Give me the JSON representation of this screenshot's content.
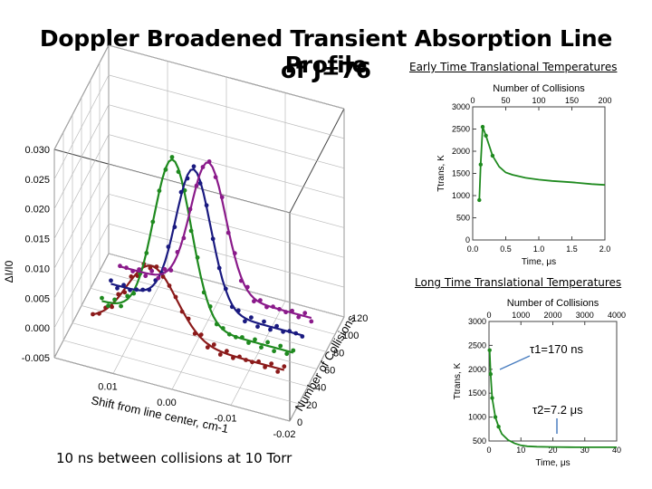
{
  "title_line1": "Doppler Broadened Transient Absorption Line Profile",
  "title_line2": "of J=76",
  "subtitle_early": "Early Time Translational Temperatures",
  "subtitle_long": "Long Time Translational Temperatures",
  "footnote": "10 ns between collisions at 10 Torr",
  "chart_data": [
    {
      "type": "line",
      "subtype": "3d-waterfall",
      "xlabel": "Shift from line center, cm-1",
      "ylabel": "ΔI/I0",
      "zlabel": "Number of Collisions",
      "x_ticks": [
        "0.01",
        "0.00",
        "-0.01",
        "-0.02"
      ],
      "y_ticks": [
        "-0.005",
        "0.000",
        "0.005",
        "0.010",
        "0.015",
        "0.020",
        "0.025",
        "0.030"
      ],
      "z_ticks": [
        "0",
        "20",
        "40",
        "60",
        "80",
        "100",
        "120"
      ],
      "ylim": [
        -0.005,
        0.03
      ],
      "series": [
        {
          "collisions": 20,
          "color": "#8b1a1a",
          "center": 0.005,
          "width": 0.006,
          "peak": 0.0115
        },
        {
          "collisions": 40,
          "color": "#1f8a1f",
          "center": 0.003,
          "width": 0.0045,
          "peak": 0.027
        },
        {
          "collisions": 60,
          "color": "#1a1a80",
          "center": 0.001,
          "width": 0.0042,
          "peak": 0.023
        },
        {
          "collisions": 80,
          "color": "#8a1a8a",
          "center": 0.0,
          "width": 0.0042,
          "peak": 0.0215
        }
      ]
    },
    {
      "type": "line",
      "subtitle": "Early Time Translational Temperatures",
      "xlabel": "Time, μs",
      "x2label": "Number of Collisions",
      "ylabel": "Ttrans, K",
      "xlim": [
        0.0,
        2.0
      ],
      "ylim": [
        0,
        3000
      ],
      "x_ticks": [
        "0.0",
        "0.5",
        "1.0",
        "1.5",
        "2.0"
      ],
      "x2_ticks": [
        "0",
        "50",
        "100",
        "150",
        "200"
      ],
      "y_ticks": [
        "0",
        "500",
        "1000",
        "1500",
        "2000",
        "2500",
        "3000"
      ],
      "color": "#1f8a1f",
      "x": [
        0.1,
        0.12,
        0.15,
        0.2,
        0.3,
        0.4,
        0.5,
        0.6,
        0.8,
        1.0,
        1.2,
        1.5,
        1.8,
        2.0
      ],
      "y": [
        900,
        1700,
        2550,
        2350,
        1900,
        1650,
        1520,
        1470,
        1400,
        1360,
        1330,
        1300,
        1260,
        1240
      ]
    },
    {
      "type": "line",
      "subtitle": "Long Time Translational Temperatures",
      "xlabel": "Time, μs",
      "x2label": "Number of Collisions",
      "ylabel": "Ttrans, K",
      "xlim": [
        0,
        40
      ],
      "ylim": [
        500,
        3000
      ],
      "x_ticks": [
        "0",
        "10",
        "20",
        "30",
        "40"
      ],
      "x2_ticks": [
        "0",
        "1000",
        "2000",
        "3000",
        "4000"
      ],
      "y_ticks": [
        "500",
        "1000",
        "1500",
        "2000",
        "2500",
        "3000"
      ],
      "color": "#1f8a1f",
      "x": [
        0.2,
        0.5,
        1,
        2,
        3,
        4,
        6,
        8,
        10,
        12,
        15,
        20,
        25,
        30,
        35,
        40
      ],
      "y": [
        2400,
        1900,
        1400,
        1000,
        800,
        650,
        520,
        450,
        410,
        390,
        380,
        375,
        372,
        370,
        370,
        370
      ],
      "annotations": [
        {
          "text": "τ1=170 ns"
        },
        {
          "text": "τ2=7.2 μs"
        }
      ]
    }
  ]
}
